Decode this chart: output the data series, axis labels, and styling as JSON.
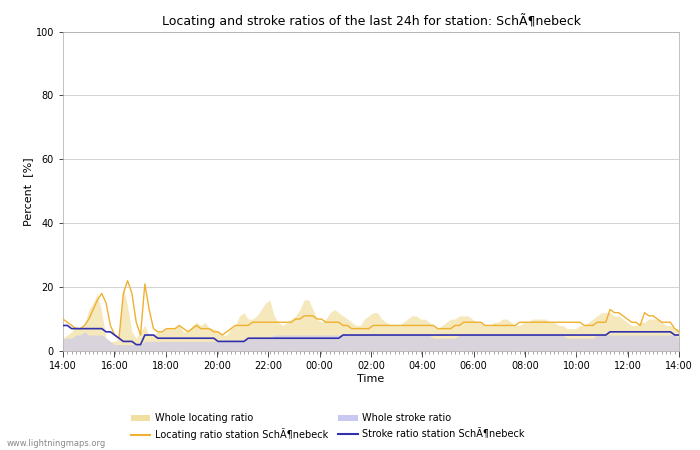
{
  "title": "Locating and stroke ratios of the last 24h for station: SchÃ¶nebeck",
  "xlabel": "Time",
  "ylabel": "Percent  [%]",
  "watermark": "www.lightningmaps.org",
  "xtick_labels": [
    "14:00",
    "16:00",
    "18:00",
    "20:00",
    "22:00",
    "00:00",
    "02:00",
    "04:00",
    "06:00",
    "08:00",
    "10:00",
    "12:00",
    "14:00"
  ],
  "ytick_labels": [
    0,
    20,
    40,
    60,
    80,
    100
  ],
  "ylim": [
    0,
    100
  ],
  "background_color": "#ffffff",
  "plot_bg_color": "#ffffff",
  "grid_color": "#cccccc",
  "legend_labels": [
    "Whole locating ratio",
    "Locating ratio station SchÃ¶nebeck",
    "Whole stroke ratio",
    "Stroke ratio station SchÃ¶nebeck"
  ],
  "locating_fill_color": "#f0dfa0",
  "locating_fill_alpha": 0.7,
  "locating_line_color": "#f0b030",
  "stroke_fill_color": "#c8c8f0",
  "stroke_fill_alpha": 0.6,
  "stroke_line_color": "#3030b0",
  "whole_locating": [
    4,
    5,
    6,
    8,
    7,
    8,
    13,
    15,
    18,
    12,
    4,
    3,
    3,
    4,
    20,
    14,
    6,
    4,
    6,
    8,
    5,
    5,
    6,
    6,
    7,
    7,
    7,
    8,
    6,
    6,
    8,
    9,
    8,
    9,
    7,
    7,
    6,
    5,
    5,
    7,
    8,
    11,
    12,
    10,
    10,
    11,
    13,
    15,
    16,
    11,
    9,
    8,
    9,
    10,
    11,
    13,
    16,
    16,
    13,
    10,
    9,
    10,
    12,
    13,
    12,
    11,
    10,
    9,
    8,
    8,
    10,
    11,
    12,
    12,
    10,
    9,
    8,
    8,
    8,
    9,
    10,
    11,
    11,
    10,
    10,
    9,
    8,
    7,
    8,
    9,
    10,
    10,
    11,
    11,
    11,
    10,
    9,
    9,
    8,
    8,
    9,
    9,
    10,
    10,
    9,
    8,
    8,
    9,
    9,
    10,
    10,
    10,
    10,
    9,
    9,
    8,
    8,
    7,
    7,
    7,
    8,
    8,
    9,
    10,
    11,
    12,
    12,
    12,
    11,
    11,
    10,
    9,
    8,
    8,
    9,
    9,
    10,
    10,
    10,
    9,
    8,
    8,
    7,
    7
  ],
  "locating_station": [
    10,
    9,
    8,
    7,
    7,
    8,
    10,
    13,
    16,
    18,
    15,
    8,
    5,
    4,
    18,
    22,
    18,
    9,
    5,
    21,
    13,
    7,
    6,
    6,
    7,
    7,
    7,
    8,
    7,
    6,
    7,
    8,
    7,
    7,
    7,
    6,
    6,
    5,
    6,
    7,
    8,
    8,
    8,
    8,
    9,
    9,
    9,
    9,
    9,
    9,
    9,
    9,
    9,
    9,
    10,
    10,
    11,
    11,
    11,
    10,
    10,
    9,
    9,
    9,
    9,
    8,
    8,
    7,
    7,
    7,
    7,
    7,
    8,
    8,
    8,
    8,
    8,
    8,
    8,
    8,
    8,
    8,
    8,
    8,
    8,
    8,
    8,
    7,
    7,
    7,
    7,
    8,
    8,
    9,
    9,
    9,
    9,
    9,
    8,
    8,
    8,
    8,
    8,
    8,
    8,
    8,
    9,
    9,
    9,
    9,
    9,
    9,
    9,
    9,
    9,
    9,
    9,
    9,
    9,
    9,
    9,
    8,
    8,
    8,
    9,
    9,
    9,
    13,
    12,
    12,
    11,
    10,
    9,
    9,
    8,
    12,
    11,
    11,
    10,
    9,
    9,
    9,
    7,
    6
  ],
  "whole_stroke": [
    4,
    4,
    4,
    5,
    5,
    6,
    5,
    5,
    5,
    5,
    4,
    3,
    2,
    2,
    2,
    2,
    2,
    2,
    2,
    3,
    3,
    3,
    3,
    3,
    3,
    3,
    3,
    3,
    3,
    3,
    3,
    3,
    3,
    3,
    3,
    3,
    3,
    3,
    3,
    3,
    3,
    3,
    3,
    4,
    4,
    4,
    4,
    4,
    4,
    5,
    5,
    5,
    5,
    5,
    5,
    5,
    5,
    5,
    5,
    5,
    5,
    5,
    5,
    5,
    5,
    5,
    5,
    5,
    5,
    5,
    5,
    5,
    5,
    5,
    5,
    5,
    5,
    5,
    5,
    5,
    5,
    5,
    5,
    5,
    5,
    5,
    4,
    4,
    4,
    4,
    4,
    4,
    5,
    5,
    5,
    5,
    5,
    5,
    5,
    5,
    5,
    5,
    5,
    5,
    5,
    5,
    5,
    5,
    5,
    5,
    5,
    5,
    5,
    5,
    5,
    5,
    5,
    4,
    4,
    4,
    4,
    4,
    4,
    4,
    5,
    5,
    5,
    5,
    5,
    5,
    5,
    5,
    5,
    5,
    5,
    5,
    5,
    5,
    5,
    5,
    5,
    5,
    5,
    4
  ],
  "stroke_station": [
    8,
    8,
    7,
    7,
    7,
    7,
    7,
    7,
    7,
    7,
    6,
    6,
    5,
    4,
    3,
    3,
    3,
    2,
    2,
    5,
    5,
    5,
    4,
    4,
    4,
    4,
    4,
    4,
    4,
    4,
    4,
    4,
    4,
    4,
    4,
    4,
    3,
    3,
    3,
    3,
    3,
    3,
    3,
    4,
    4,
    4,
    4,
    4,
    4,
    4,
    4,
    4,
    4,
    4,
    4,
    4,
    4,
    4,
    4,
    4,
    4,
    4,
    4,
    4,
    4,
    5,
    5,
    5,
    5,
    5,
    5,
    5,
    5,
    5,
    5,
    5,
    5,
    5,
    5,
    5,
    5,
    5,
    5,
    5,
    5,
    5,
    5,
    5,
    5,
    5,
    5,
    5,
    5,
    5,
    5,
    5,
    5,
    5,
    5,
    5,
    5,
    5,
    5,
    5,
    5,
    5,
    5,
    5,
    5,
    5,
    5,
    5,
    5,
    5,
    5,
    5,
    5,
    5,
    5,
    5,
    5,
    5,
    5,
    5,
    5,
    5,
    5,
    6,
    6,
    6,
    6,
    6,
    6,
    6,
    6,
    6,
    6,
    6,
    6,
    6,
    6,
    6,
    5,
    5
  ]
}
